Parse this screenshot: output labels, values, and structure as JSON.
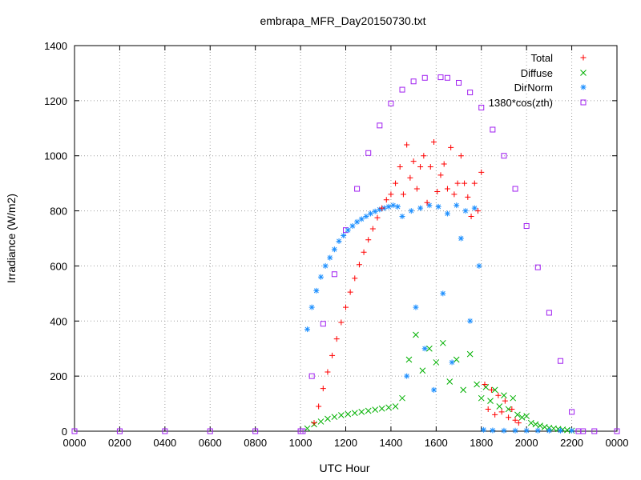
{
  "chart_data": {
    "type": "scatter",
    "title": "embrapa_MFR_Day20150730.txt",
    "xlabel": "UTC Hour",
    "ylabel": "Irradiance (W/m2)",
    "xlim": [
      0,
      24
    ],
    "ylim": [
      0,
      1400
    ],
    "x_ticks": [
      0,
      2,
      4,
      6,
      8,
      10,
      12,
      14,
      16,
      18,
      20,
      22,
      24
    ],
    "x_tick_labels": [
      "0000",
      "0200",
      "0400",
      "0600",
      "0800",
      "1000",
      "1200",
      "1400",
      "1600",
      "1800",
      "2000",
      "2200",
      "0000"
    ],
    "y_ticks": [
      0,
      200,
      400,
      600,
      800,
      1000,
      1200,
      1400
    ],
    "y_tick_labels": [
      "0",
      "200",
      "400",
      "600",
      "800",
      "1000",
      "1200",
      "1400"
    ],
    "grid": true,
    "legend_position": "top-right",
    "series": [
      {
        "name": "Total",
        "color": "#ff0000",
        "marker": "plus",
        "x": [
          10.6,
          10.8,
          11.0,
          11.2,
          11.4,
          11.6,
          11.8,
          12.0,
          12.2,
          12.4,
          12.6,
          12.8,
          13.0,
          13.2,
          13.4,
          13.6,
          13.8,
          14.0,
          14.2,
          14.4,
          14.55,
          14.7,
          14.85,
          15.0,
          15.15,
          15.3,
          15.45,
          15.6,
          15.75,
          15.9,
          16.05,
          16.2,
          16.35,
          16.5,
          16.65,
          16.8,
          16.95,
          17.1,
          17.25,
          17.4,
          17.55,
          17.7,
          17.85,
          18.0,
          18.15,
          18.3,
          18.45,
          18.6,
          18.75,
          18.9,
          19.05,
          19.2,
          19.35,
          19.5,
          19.65
        ],
        "y": [
          30,
          90,
          155,
          215,
          275,
          335,
          395,
          450,
          505,
          555,
          605,
          650,
          695,
          735,
          775,
          810,
          840,
          860,
          900,
          960,
          860,
          1040,
          920,
          980,
          880,
          960,
          1000,
          830,
          960,
          1050,
          870,
          930,
          970,
          880,
          1030,
          860,
          900,
          1000,
          900,
          850,
          780,
          900,
          800,
          940,
          170,
          80,
          150,
          60,
          130,
          70,
          110,
          50,
          80,
          40,
          30
        ]
      },
      {
        "name": "Diffuse",
        "color": "#00b000",
        "marker": "cross",
        "x": [
          10.3,
          10.6,
          10.9,
          11.2,
          11.5,
          11.8,
          12.1,
          12.4,
          12.7,
          13.0,
          13.3,
          13.6,
          13.9,
          14.2,
          14.5,
          14.8,
          15.1,
          15.4,
          15.7,
          16.0,
          16.3,
          16.6,
          16.9,
          17.2,
          17.5,
          17.8,
          18.0,
          18.2,
          18.4,
          18.6,
          18.8,
          19.0,
          19.2,
          19.4,
          19.6,
          19.8,
          20.0,
          20.2,
          20.4,
          20.6,
          20.8,
          21.0,
          21.2,
          21.4,
          21.6,
          21.8,
          22.0
        ],
        "y": [
          10,
          25,
          35,
          45,
          52,
          58,
          62,
          66,
          70,
          74,
          78,
          82,
          86,
          90,
          120,
          260,
          350,
          220,
          300,
          250,
          320,
          180,
          260,
          150,
          280,
          170,
          120,
          160,
          110,
          150,
          90,
          130,
          80,
          120,
          60,
          50,
          55,
          30,
          25,
          20,
          15,
          12,
          10,
          8,
          6,
          4,
          2
        ]
      },
      {
        "name": "DirNorm",
        "color": "#1e90ff",
        "marker": "star",
        "x": [
          10.3,
          10.5,
          10.7,
          10.9,
          11.1,
          11.3,
          11.5,
          11.7,
          11.9,
          12.1,
          12.3,
          12.5,
          12.7,
          12.9,
          13.1,
          13.3,
          13.5,
          13.7,
          13.9,
          14.1,
          14.3,
          14.5,
          14.7,
          14.9,
          15.1,
          15.3,
          15.5,
          15.7,
          15.9,
          16.1,
          16.3,
          16.5,
          16.7,
          16.9,
          17.1,
          17.3,
          17.5,
          17.7,
          17.9,
          18.1,
          18.5,
          19.0,
          19.5,
          20.0,
          20.5,
          21.0,
          21.5,
          22.0
        ],
        "y": [
          370,
          450,
          510,
          560,
          600,
          630,
          660,
          690,
          710,
          730,
          745,
          760,
          770,
          780,
          790,
          798,
          805,
          810,
          815,
          820,
          815,
          780,
          200,
          800,
          450,
          810,
          300,
          820,
          150,
          815,
          500,
          790,
          250,
          820,
          700,
          800,
          400,
          810,
          600,
          5,
          3,
          2,
          2,
          2,
          2,
          2,
          2,
          2
        ]
      },
      {
        "name": "1380*cos(zth)",
        "color": "#a020f0",
        "marker": "square",
        "x": [
          0,
          2,
          4,
          6,
          8,
          10,
          10.1,
          10.5,
          11.0,
          11.5,
          12.0,
          12.5,
          13.0,
          13.5,
          14.0,
          14.5,
          15.0,
          15.5,
          16.2,
          16.5,
          17.0,
          17.5,
          18.0,
          18.5,
          19.0,
          19.5,
          20.0,
          20.5,
          21.0,
          21.5,
          22.0,
          22.3,
          22.5,
          23,
          24
        ],
        "y": [
          0,
          0,
          0,
          0,
          0,
          0,
          0,
          200,
          390,
          570,
          730,
          880,
          1010,
          1110,
          1190,
          1240,
          1270,
          1283,
          1285,
          1283,
          1265,
          1230,
          1175,
          1095,
          1000,
          880,
          745,
          595,
          430,
          255,
          70,
          0,
          0,
          0,
          0
        ]
      }
    ]
  }
}
